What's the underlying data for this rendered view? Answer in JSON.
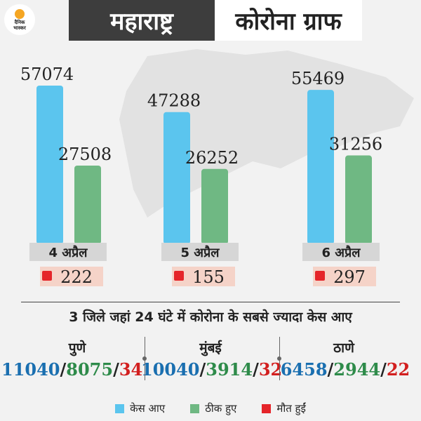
{
  "brand": {
    "logo_text_1": "दैनिक",
    "logo_text_2": "भास्कर"
  },
  "header": {
    "state": "महाराष्ट्र",
    "title": "कोरोना ग्राफ"
  },
  "colors": {
    "cases": "#5bc5ee",
    "recovered": "#6fb883",
    "deaths": "#e5252a",
    "date_bar": "#d6d6d6",
    "death_box": "#f5d3c8"
  },
  "chart_data": {
    "type": "bar",
    "categories": [
      "4 अप्रैल",
      "5 अप्रैल",
      "6 अप्रैल"
    ],
    "series": [
      {
        "name": "केस आए",
        "values": [
          57074,
          47288,
          55469
        ]
      },
      {
        "name": "ठीक हुए",
        "values": [
          27508,
          26252,
          31256
        ]
      },
      {
        "name": "मौत हुईं",
        "values": [
          222,
          155,
          297
        ]
      }
    ],
    "ylim": [
      0,
      60000
    ]
  },
  "districts": {
    "title": "3 जिले जहां 24 घंटे में कोरोना के सबसे ज्यादा केस आए",
    "items": [
      {
        "name": "पुणे",
        "cases": "11040",
        "recovered": "8075",
        "deaths": "34"
      },
      {
        "name": "मुंबई",
        "cases": "10040",
        "recovered": "3914",
        "deaths": "32"
      },
      {
        "name": "ठाणे",
        "cases": "6458",
        "recovered": "2944",
        "deaths": "22"
      }
    ]
  },
  "legend": {
    "cases": "केस आए",
    "recovered": "ठीक हुए",
    "deaths": "मौत हुईं"
  }
}
